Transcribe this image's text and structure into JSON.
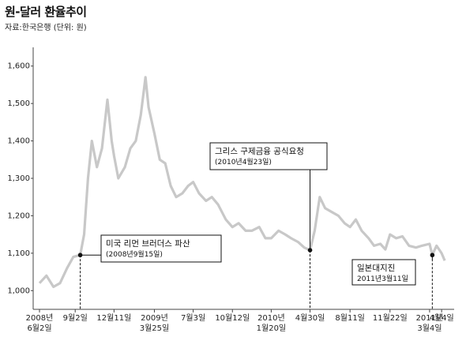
{
  "title": "원-달러 환율추이",
  "source": "자료:한국은행 (단위: 원)",
  "chart_data": {
    "type": "line",
    "title": "원-달러 환율추이",
    "unit": "원",
    "ylim": [
      950,
      1650
    ],
    "yticks": [
      1000,
      1100,
      1200,
      1300,
      1400,
      1500,
      1600
    ],
    "ytick_labels": [
      "1,000",
      "1,100",
      "1,200",
      "1,300",
      "1,400",
      "1,500",
      "1,600"
    ],
    "x_ticks": [
      {
        "date": "2008-06-02",
        "lines": [
          "2008년",
          "6월2일"
        ]
      },
      {
        "date": "2008-09-02",
        "lines": [
          "9월2일"
        ]
      },
      {
        "date": "2008-12-11",
        "lines": [
          "12월11일"
        ]
      },
      {
        "date": "2009-03-25",
        "lines": [
          "2009년",
          "3월25일"
        ]
      },
      {
        "date": "2009-07-03",
        "lines": [
          "7월3일"
        ]
      },
      {
        "date": "2009-10-12",
        "lines": [
          "10월12일"
        ]
      },
      {
        "date": "2010-01-20",
        "lines": [
          "2010년",
          "1월20일"
        ]
      },
      {
        "date": "2010-04-30",
        "lines": [
          "4월30일"
        ]
      },
      {
        "date": "2010-08-11",
        "lines": [
          "8월11일"
        ]
      },
      {
        "date": "2010-11-22",
        "lines": [
          "11월22일"
        ]
      },
      {
        "date": "2011-03-04",
        "lines": [
          "2011년",
          "3월4일"
        ]
      },
      {
        "date": "2011-04-04",
        "lines": [
          "4월4일"
        ]
      }
    ],
    "series": [
      {
        "color": "#c8c8c8",
        "points": [
          [
            "2008-06-02",
            1020
          ],
          [
            "2008-06-20",
            1040
          ],
          [
            "2008-07-08",
            1010
          ],
          [
            "2008-07-25",
            1020
          ],
          [
            "2008-08-12",
            1060
          ],
          [
            "2008-08-28",
            1090
          ],
          [
            "2008-09-15",
            1095
          ],
          [
            "2008-09-25",
            1150
          ],
          [
            "2008-10-05",
            1300
          ],
          [
            "2008-10-15",
            1400
          ],
          [
            "2008-10-28",
            1330
          ],
          [
            "2008-11-10",
            1380
          ],
          [
            "2008-11-24",
            1510
          ],
          [
            "2008-12-05",
            1400
          ],
          [
            "2008-12-11",
            1360
          ],
          [
            "2008-12-22",
            1300
          ],
          [
            "2009-01-08",
            1330
          ],
          [
            "2009-01-22",
            1380
          ],
          [
            "2009-02-05",
            1400
          ],
          [
            "2009-02-18",
            1470
          ],
          [
            "2009-03-02",
            1570
          ],
          [
            "2009-03-10",
            1490
          ],
          [
            "2009-03-25",
            1420
          ],
          [
            "2009-04-08",
            1350
          ],
          [
            "2009-04-22",
            1340
          ],
          [
            "2009-05-06",
            1280
          ],
          [
            "2009-05-20",
            1250
          ],
          [
            "2009-06-05",
            1260
          ],
          [
            "2009-06-20",
            1280
          ],
          [
            "2009-07-03",
            1290
          ],
          [
            "2009-07-18",
            1260
          ],
          [
            "2009-08-05",
            1240
          ],
          [
            "2009-08-20",
            1250
          ],
          [
            "2009-09-05",
            1230
          ],
          [
            "2009-09-25",
            1190
          ],
          [
            "2009-10-12",
            1170
          ],
          [
            "2009-10-28",
            1180
          ],
          [
            "2009-11-15",
            1160
          ],
          [
            "2009-12-01",
            1160
          ],
          [
            "2009-12-20",
            1170
          ],
          [
            "2010-01-05",
            1140
          ],
          [
            "2010-01-20",
            1140
          ],
          [
            "2010-02-08",
            1160
          ],
          [
            "2010-02-25",
            1150
          ],
          [
            "2010-03-12",
            1140
          ],
          [
            "2010-03-30",
            1130
          ],
          [
            "2010-04-15",
            1115
          ],
          [
            "2010-04-30",
            1108
          ],
          [
            "2010-05-12",
            1160
          ],
          [
            "2010-05-25",
            1250
          ],
          [
            "2010-06-08",
            1220
          ],
          [
            "2010-06-25",
            1210
          ],
          [
            "2010-07-12",
            1200
          ],
          [
            "2010-07-28",
            1180
          ],
          [
            "2010-08-11",
            1170
          ],
          [
            "2010-08-26",
            1190
          ],
          [
            "2010-09-10",
            1160
          ],
          [
            "2010-09-28",
            1140
          ],
          [
            "2010-10-12",
            1120
          ],
          [
            "2010-10-28",
            1125
          ],
          [
            "2010-11-10",
            1110
          ],
          [
            "2010-11-22",
            1150
          ],
          [
            "2010-12-08",
            1140
          ],
          [
            "2010-12-24",
            1145
          ],
          [
            "2011-01-10",
            1120
          ],
          [
            "2011-01-28",
            1115
          ],
          [
            "2011-02-12",
            1120
          ],
          [
            "2011-03-04",
            1125
          ],
          [
            "2011-03-11",
            1095
          ],
          [
            "2011-03-22",
            1120
          ],
          [
            "2011-04-04",
            1100
          ],
          [
            "2011-04-12",
            1080
          ]
        ]
      }
    ],
    "annotations": [
      {
        "text": "미국 리먼 브러더스 파산",
        "date_label": "(2008년9월15일)",
        "date": "2008-09-15",
        "value": 1095
      },
      {
        "text": "그리스 구제금융 공식요청",
        "date_label": "(2010년4월23일)",
        "date": "2010-04-30",
        "value": 1108
      },
      {
        "text": "일본대지진",
        "date_label": "2011년3월11일",
        "date": "2011-03-11",
        "value": 1095
      }
    ]
  }
}
